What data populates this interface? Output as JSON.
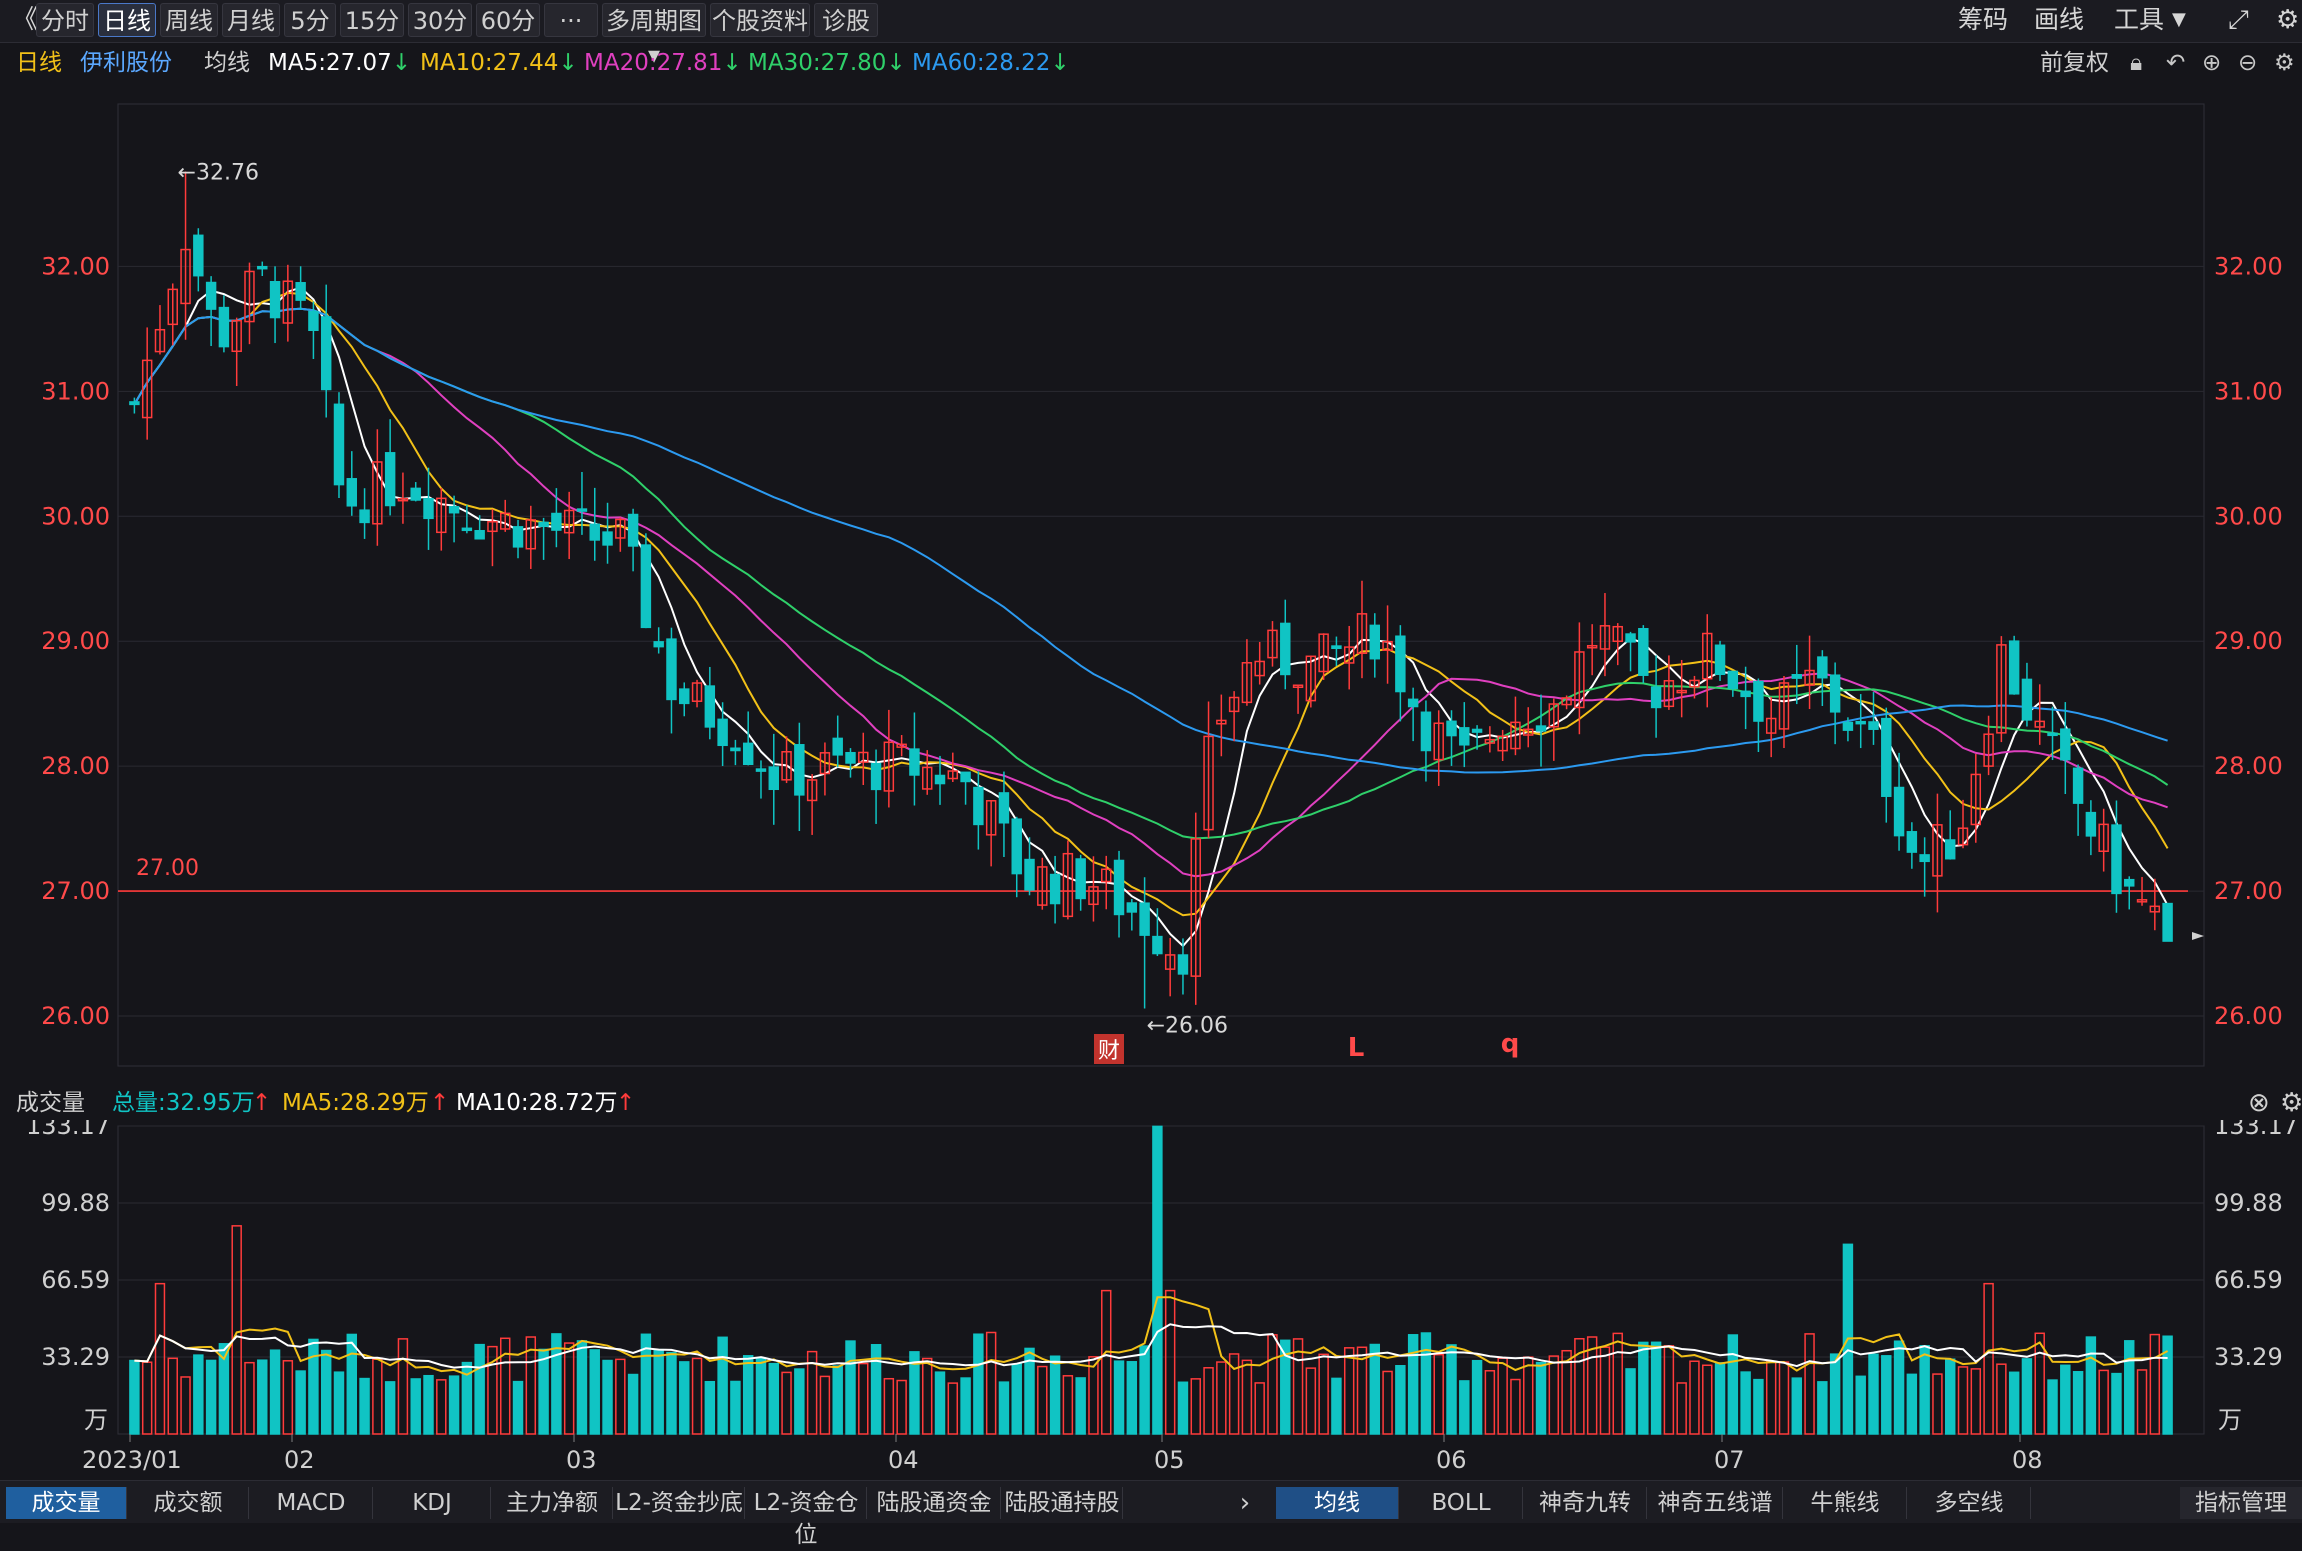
{
  "toolbar": {
    "back_glyph": "《",
    "tabs": [
      "分时",
      "日线",
      "周线",
      "月线",
      "5分",
      "15分",
      "30分",
      "60分",
      "···",
      "多周期图",
      "个股资料",
      "诊股"
    ],
    "active_tab": 1,
    "right_items": [
      "筹码",
      "画线",
      "工具"
    ]
  },
  "info": {
    "period": "日线",
    "stock_name": "伊利股份",
    "avg_label": "均线",
    "ma": [
      {
        "label": "MA5:27.07",
        "color": "#ffffff"
      },
      {
        "label": "MA10:27.44",
        "color": "#f2c118"
      },
      {
        "label": "MA20:27.81",
        "color": "#e040c0"
      },
      {
        "label": "MA30:27.80",
        "color": "#2fd06a"
      },
      {
        "label": "MA60:28.22",
        "color": "#2c9af0"
      }
    ],
    "fq_label": "前复权"
  },
  "price_axis": {
    "labels": [
      "32.00",
      "31.00",
      "30.00",
      "29.00",
      "28.00",
      "27.00",
      "26.00"
    ],
    "values": [
      32,
      31,
      30,
      29,
      28,
      27,
      26
    ],
    "ref_line_value": 27.0,
    "ref_line_label": "27.00",
    "high_marker": "←32.76",
    "low_marker": "←26.06"
  },
  "events": {
    "cai": "财",
    "L": "L",
    "q": "q"
  },
  "volume": {
    "title": "成交量",
    "total": "总量:32.95万",
    "ma5": "MA5:28.29万",
    "ma10": "MA10:28.72万",
    "axis_labels": [
      "133.17",
      "99.88",
      "66.59",
      "33.29"
    ],
    "axis_values": [
      133.17,
      99.88,
      66.59,
      33.29
    ],
    "unit": "万"
  },
  "date_axis": [
    "2023/01",
    "02",
    "03",
    "04",
    "05",
    "06",
    "07",
    "08"
  ],
  "bottom_tabs_left": [
    "成交量",
    "成交额",
    "MACD",
    "KDJ",
    "主力净额",
    "L2-资金抄底",
    "L2-资金仓位",
    "陆股通资金",
    "陆股通持股"
  ],
  "bottom_tabs_right": [
    "均线",
    "BOLL",
    "神奇九转",
    "神奇五线谱",
    "牛熊线",
    "多空线"
  ],
  "bottom_right_label": "指标管理",
  "colors": {
    "up": "#ff3b3b",
    "down": "#10c4c4",
    "bg": "#15151a",
    "grid": "#2a2a32"
  },
  "chart_data": {
    "type": "candlestick",
    "ylim": [
      25.6,
      33.3
    ],
    "high": 32.76,
    "low": 26.06,
    "last_close": 26.6,
    "volume_ylim": [
      0,
      133.17
    ]
  }
}
